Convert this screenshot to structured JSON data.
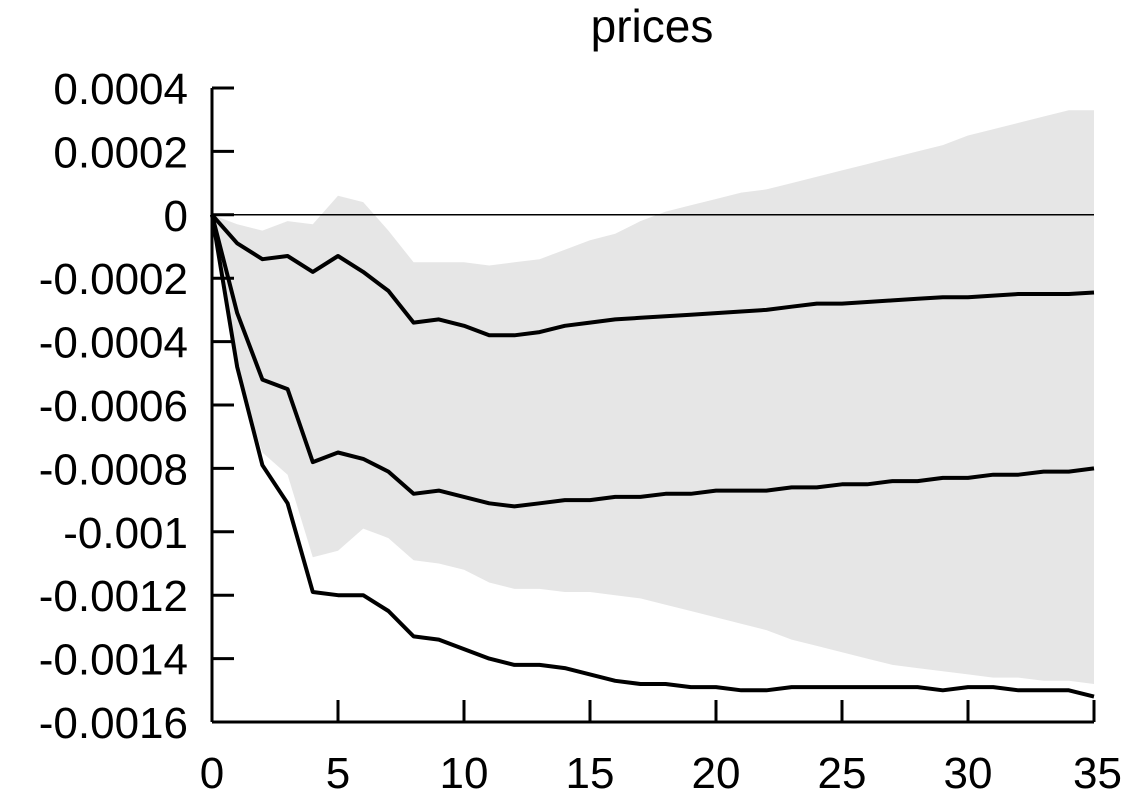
{
  "chart_data": {
    "type": "line",
    "title": "prices",
    "xlabel": "",
    "ylabel": "",
    "xlim": [
      0,
      35
    ],
    "ylim": [
      -0.0016,
      0.0004
    ],
    "x_ticks": [
      "0",
      "5",
      "10",
      "15",
      "20",
      "25",
      "30",
      "35"
    ],
    "y_ticks": [
      "0.0004",
      "0.0002",
      "0",
      "-0.0002",
      "-0.0004",
      "-0.0006",
      "-0.0008",
      "-0.001",
      "-0.0012",
      "-0.0014",
      "-0.0016"
    ],
    "reference_line": 0,
    "band": {
      "x": [
        0,
        1,
        2,
        3,
        4,
        5,
        6,
        7,
        8,
        9,
        10,
        11,
        12,
        13,
        14,
        15,
        16,
        17,
        18,
        19,
        20,
        21,
        22,
        23,
        24,
        25,
        26,
        27,
        28,
        29,
        30,
        31,
        32,
        33,
        34,
        35
      ],
      "upper": [
        0,
        -3e-05,
        -5e-05,
        -2e-05,
        -3e-05,
        6e-05,
        4e-05,
        -5e-05,
        -0.00015,
        -0.00015,
        -0.00015,
        -0.00016,
        -0.00015,
        -0.00014,
        -0.00011,
        -8e-05,
        -6e-05,
        -2e-05,
        1e-05,
        3e-05,
        5e-05,
        7e-05,
        8e-05,
        0.0001,
        0.00012,
        0.00014,
        0.00016,
        0.00018,
        0.0002,
        0.00022,
        0.00025,
        0.00027,
        0.00029,
        0.00031,
        0.00033,
        0.00033
      ],
      "lower": [
        0,
        -0.0005,
        -0.00075,
        -0.00082,
        -0.00108,
        -0.00106,
        -0.00099,
        -0.00102,
        -0.00109,
        -0.0011,
        -0.00112,
        -0.00116,
        -0.00118,
        -0.00118,
        -0.00119,
        -0.00119,
        -0.0012,
        -0.00121,
        -0.00123,
        -0.00125,
        -0.00127,
        -0.00129,
        -0.00131,
        -0.00134,
        -0.00136,
        -0.00138,
        -0.0014,
        -0.00142,
        -0.00143,
        -0.00144,
        -0.00145,
        -0.00146,
        -0.00146,
        -0.00147,
        -0.00147,
        -0.00148
      ]
    },
    "series": [
      {
        "x": [
          0,
          1,
          2,
          3,
          4,
          5,
          6,
          7,
          8,
          9,
          10,
          11,
          12,
          13,
          14,
          15,
          16,
          17,
          18,
          19,
          20,
          21,
          22,
          23,
          24,
          25,
          26,
          27,
          28,
          29,
          30,
          31,
          32,
          33,
          34,
          35
        ],
        "values": [
          0,
          -9e-05,
          -0.00014,
          -0.00013,
          -0.00018,
          -0.00013,
          -0.00018,
          -0.00024,
          -0.00034,
          -0.00033,
          -0.00035,
          -0.00038,
          -0.00038,
          -0.00037,
          -0.00035,
          -0.00034,
          -0.00033,
          -0.000325,
          -0.00032,
          -0.000315,
          -0.00031,
          -0.000305,
          -0.0003,
          -0.00029,
          -0.00028,
          -0.00028,
          -0.000275,
          -0.00027,
          -0.000265,
          -0.00026,
          -0.00026,
          -0.000255,
          -0.00025,
          -0.00025,
          -0.00025,
          -0.000245
        ]
      },
      {
        "x": [
          0,
          1,
          2,
          3,
          4,
          5,
          6,
          7,
          8,
          9,
          10,
          11,
          12,
          13,
          14,
          15,
          16,
          17,
          18,
          19,
          20,
          21,
          22,
          23,
          24,
          25,
          26,
          27,
          28,
          29,
          30,
          31,
          32,
          33,
          34,
          35
        ],
        "values": [
          0,
          -0.00031,
          -0.00052,
          -0.00055,
          -0.00078,
          -0.00075,
          -0.00077,
          -0.00081,
          -0.00088,
          -0.00087,
          -0.00089,
          -0.00091,
          -0.00092,
          -0.00091,
          -0.0009,
          -0.0009,
          -0.00089,
          -0.00089,
          -0.00088,
          -0.00088,
          -0.00087,
          -0.00087,
          -0.00087,
          -0.00086,
          -0.00086,
          -0.00085,
          -0.00085,
          -0.00084,
          -0.00084,
          -0.00083,
          -0.00083,
          -0.00082,
          -0.00082,
          -0.00081,
          -0.00081,
          -0.0008
        ]
      },
      {
        "x": [
          0,
          1,
          2,
          3,
          4,
          5,
          6,
          7,
          8,
          9,
          10,
          11,
          12,
          13,
          14,
          15,
          16,
          17,
          18,
          19,
          20,
          21,
          22,
          23,
          24,
          25,
          26,
          27,
          28,
          29,
          30,
          31,
          32,
          33,
          34,
          35
        ],
        "values": [
          0,
          -0.00048,
          -0.00079,
          -0.00091,
          -0.00119,
          -0.0012,
          -0.0012,
          -0.00125,
          -0.00133,
          -0.00134,
          -0.00137,
          -0.0014,
          -0.00142,
          -0.00142,
          -0.00143,
          -0.00145,
          -0.00147,
          -0.00148,
          -0.00148,
          -0.00149,
          -0.00149,
          -0.0015,
          -0.0015,
          -0.00149,
          -0.00149,
          -0.00149,
          -0.00149,
          -0.00149,
          -0.00149,
          -0.0015,
          -0.00149,
          -0.00149,
          -0.0015,
          -0.0015,
          -0.0015,
          -0.00152
        ]
      }
    ],
    "colors": {
      "band": "#e6e6e6",
      "lines": "#000000",
      "axes": "#000000"
    },
    "grid": false
  }
}
